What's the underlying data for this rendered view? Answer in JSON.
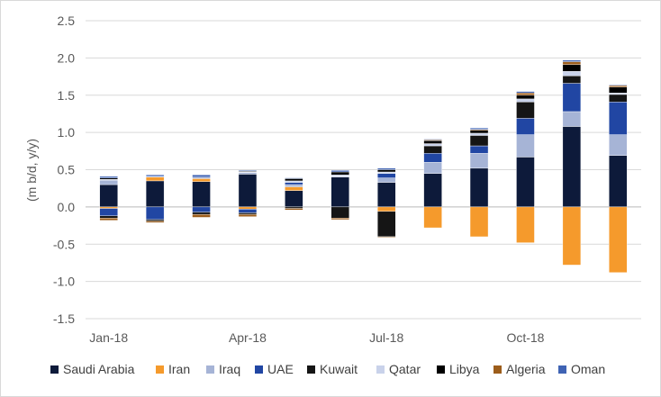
{
  "chart_data": {
    "type": "bar",
    "stacked": true,
    "ylabel": "(m b/d, y/y)",
    "ylim": [
      -1.5,
      2.5
    ],
    "y_ticks": [
      "2.5",
      "2.0",
      "1.5",
      "1.0",
      "0.5",
      "0.0",
      "-0.5",
      "-1.0",
      "-1.5"
    ],
    "y_tick_values": [
      2.5,
      2.0,
      1.5,
      1.0,
      0.5,
      0.0,
      -0.5,
      -1.0,
      -1.5
    ],
    "categories": [
      "Jan-18",
      "Feb-18",
      "Mar-18",
      "Apr-18",
      "May-18",
      "Jun-18",
      "Jul-18",
      "Aug-18",
      "Sep-18",
      "Oct-18",
      "Nov-18",
      "Dec-18"
    ],
    "x_tick_labels": [
      {
        "category_index": 0,
        "label": "Jan-18"
      },
      {
        "category_index": 3,
        "label": "Apr-18"
      },
      {
        "category_index": 6,
        "label": "Jul-18"
      },
      {
        "category_index": 9,
        "label": "Oct-18"
      }
    ],
    "grid": "horizontal",
    "legend_position": "bottom",
    "series": [
      {
        "name": "Saudi Arabia",
        "color": "#0d1a3a",
        "values": [
          0.3,
          0.35,
          0.34,
          0.44,
          0.22,
          0.4,
          0.33,
          0.45,
          0.52,
          0.67,
          1.08,
          0.69
        ]
      },
      {
        "name": "Iran",
        "color": "#f59a2c",
        "values": [
          -0.02,
          0.05,
          0.04,
          -0.03,
          0.05,
          0.0,
          -0.06,
          -0.28,
          -0.4,
          -0.48,
          -0.78,
          -0.88
        ]
      },
      {
        "name": "Iraq",
        "color": "#a6b4d6",
        "values": [
          0.06,
          0.01,
          0.02,
          0.02,
          0.03,
          0.01,
          0.06,
          0.15,
          0.2,
          0.3,
          0.2,
          0.28
        ]
      },
      {
        "name": "UAE",
        "color": "#2146a3",
        "values": [
          -0.1,
          -0.17,
          -0.07,
          -0.05,
          0.03,
          0.0,
          0.06,
          0.12,
          0.1,
          0.22,
          0.38,
          0.44
        ]
      },
      {
        "name": "Kuwait",
        "color": "#151515",
        "values": [
          -0.03,
          -0.02,
          -0.03,
          -0.02,
          -0.02,
          -0.15,
          -0.34,
          0.1,
          0.14,
          0.22,
          0.1,
          0.1
        ]
      },
      {
        "name": "Qatar",
        "color": "#c9d2ea",
        "values": [
          0.01,
          0.0,
          0.0,
          0.01,
          0.02,
          0.02,
          0.02,
          0.03,
          0.03,
          0.04,
          0.06,
          0.02
        ]
      },
      {
        "name": "Libya",
        "color": "#000000",
        "values": [
          0.02,
          0.0,
          0.0,
          0.01,
          0.03,
          0.04,
          0.03,
          0.04,
          0.04,
          0.05,
          0.09,
          0.08
        ]
      },
      {
        "name": "Algeria",
        "color": "#9c5d1b",
        "values": [
          -0.03,
          -0.02,
          -0.04,
          -0.03,
          -0.02,
          -0.02,
          -0.01,
          0.01,
          0.01,
          0.03,
          0.04,
          0.02
        ]
      },
      {
        "name": "Oman",
        "color": "#3f63b4",
        "values": [
          0.02,
          0.02,
          0.03,
          0.01,
          0.01,
          0.02,
          0.02,
          0.01,
          0.02,
          0.02,
          0.02,
          0.01
        ]
      }
    ]
  }
}
